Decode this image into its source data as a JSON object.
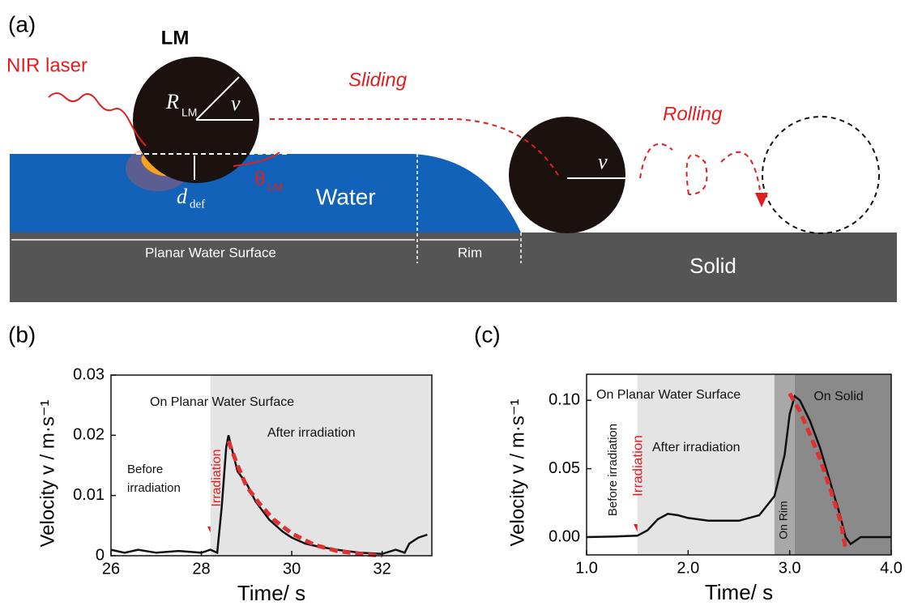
{
  "panel_a": {
    "label": "(a)",
    "lm": "LM",
    "laser": "NIR laser",
    "radius": "R",
    "radius_sub": "LM",
    "velocity": "v",
    "velocity2": "v",
    "sliding": "Sliding",
    "rolling": "Rolling",
    "theta": "θ",
    "theta_sub": "LM",
    "depth": "d",
    "depth_sub": "def",
    "water": "Water",
    "planar": "Planar Water Surface",
    "rim": "Rim",
    "solid": "Solid"
  },
  "chart_data": [
    {
      "type": "line",
      "label": "(b)",
      "xlabel": "Time/ s",
      "ylabel": "Velocity v / m·s⁻¹",
      "xlim": [
        26,
        33.1
      ],
      "xticks": [
        26,
        28,
        30,
        32
      ],
      "ylim": [
        0,
        0.03
      ],
      "yticks": [
        0,
        0.01,
        0.02,
        0.03
      ],
      "shading": [
        {
          "x": [
            28.2,
            33.1
          ],
          "color": "#e4e4e4"
        }
      ],
      "annotations": [
        "On Planar Water Surface",
        "After irradiation",
        "Before",
        "irradiation",
        "Irradiation"
      ],
      "series": [
        {
          "color": "#111111",
          "x": [
            26,
            26.3,
            26.6,
            27,
            27.5,
            28,
            28.2,
            28.35,
            28.45,
            28.55,
            28.6,
            28.7,
            28.8,
            29,
            29.2,
            29.5,
            29.8,
            30,
            30.3,
            30.6,
            31,
            31.5,
            32,
            32.3,
            32.5,
            32.6,
            32.8,
            33
          ],
          "values": [
            0.001,
            0.0005,
            0.001,
            0.0005,
            0.0008,
            0.0005,
            0.001,
            0.0005,
            0.008,
            0.018,
            0.02,
            0.017,
            0.014,
            0.012,
            0.009,
            0.006,
            0.004,
            0.003,
            0.002,
            0.0015,
            0.001,
            0.0005,
            0.0003,
            0.001,
            0.0005,
            0.002,
            0.003,
            0.0035
          ]
        },
        {
          "color": "#e03030",
          "dashed": true,
          "x": [
            28.6,
            28.8,
            29,
            29.3,
            29.6,
            30,
            30.5,
            31,
            31.5,
            32
          ],
          "values": [
            0.019,
            0.015,
            0.0115,
            0.0085,
            0.006,
            0.0037,
            0.0018,
            0.0008,
            0.0003,
            0
          ]
        }
      ]
    },
    {
      "type": "line",
      "label": "(c)",
      "xlabel": "Time/ s",
      "ylabel": "Velocity v / m·s⁻¹",
      "xlim": [
        1,
        4
      ],
      "xticks": [
        {
          "value": 1,
          "label": "1.0"
        },
        {
          "value": 2,
          "label": "2.0"
        },
        {
          "value": 3,
          "label": "3.0"
        },
        {
          "value": 4,
          "label": "4.0"
        }
      ],
      "ylim": [
        -0.013,
        0.119
      ],
      "yticks": [
        {
          "value": 0,
          "label": "0.00"
        },
        {
          "value": 0.05,
          "label": "0.05"
        },
        {
          "value": 0.1,
          "label": "0.10"
        }
      ],
      "shading": [
        {
          "x": [
            1.5,
            2.85
          ],
          "color": "#e4e4e4"
        },
        {
          "x": [
            2.85,
            3.05
          ],
          "color": "#a8a8a8"
        },
        {
          "x": [
            3.05,
            4
          ],
          "color": "#8a8a8a"
        }
      ],
      "annotations": [
        "On Planar Water Surface",
        "On Solid",
        "After irradiation",
        "Before irradiation",
        "Irradiation",
        "On Rim"
      ],
      "series": [
        {
          "color": "#111111",
          "x": [
            1,
            1.3,
            1.5,
            1.6,
            1.7,
            1.8,
            1.9,
            2,
            2.2,
            2.5,
            2.7,
            2.85,
            2.95,
            3,
            3.05,
            3.1,
            3.2,
            3.3,
            3.4,
            3.5,
            3.55,
            3.6,
            3.7,
            4
          ],
          "values": [
            0,
            0.0005,
            0.001,
            0.005,
            0.013,
            0.017,
            0.016,
            0.014,
            0.012,
            0.012,
            0.016,
            0.03,
            0.06,
            0.09,
            0.103,
            0.1,
            0.085,
            0.065,
            0.04,
            0.015,
            0,
            -0.005,
            0,
            0
          ]
        },
        {
          "color": "#e03030",
          "dashed": true,
          "x": [
            3,
            3.1,
            3.2,
            3.3,
            3.4,
            3.5,
            3.55
          ],
          "values": [
            0.105,
            0.092,
            0.075,
            0.057,
            0.035,
            0.012,
            -0.008
          ]
        }
      ]
    }
  ]
}
